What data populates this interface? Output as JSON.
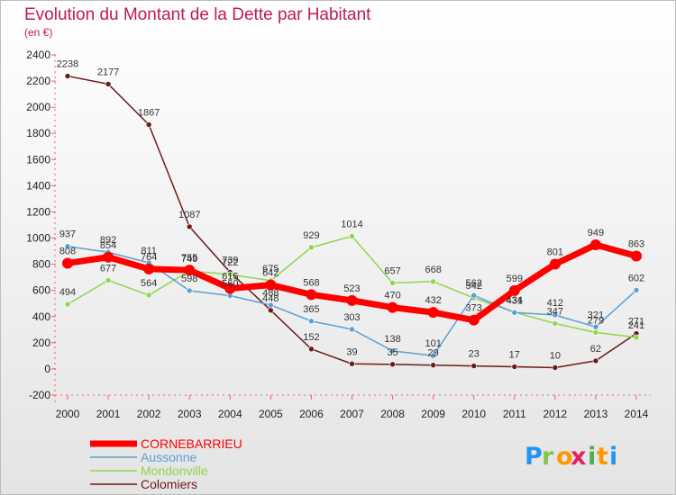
{
  "logo": [
    "P",
    "r",
    "o",
    "x",
    "i",
    "t",
    "i"
  ],
  "chart_data": {
    "type": "line",
    "title": "Evolution du Montant de la Dette par Habitant",
    "subtitle": "(en €)",
    "xlabel": "",
    "ylabel": "",
    "categories": [
      "2000",
      "2001",
      "2002",
      "2003",
      "2004",
      "2005",
      "2006",
      "2007",
      "2008",
      "2009",
      "2010",
      "2011",
      "2012",
      "2013",
      "2014"
    ],
    "ylim": [
      -200,
      2400
    ],
    "yticks": [
      -200,
      0,
      200,
      400,
      600,
      800,
      1000,
      1200,
      1400,
      1600,
      1800,
      2000,
      2200,
      2400
    ],
    "grid": false,
    "legend_position": "bottom-left",
    "series": [
      {
        "name": "Colomiers",
        "color": "#6b1a1a",
        "width": 1.5,
        "marker": 3,
        "values": [
          2238,
          2177,
          1867,
          1087,
          739,
          448,
          152,
          39,
          35,
          29,
          23,
          17,
          10,
          62,
          271
        ]
      },
      {
        "name": "Mondonville",
        "color": "#8fd64a",
        "width": 1.5,
        "marker": 3,
        "values": [
          494,
          677,
          564,
          749,
          722,
          675,
          929,
          1014,
          657,
          668,
          542,
          434,
          347,
          279,
          241
        ]
      },
      {
        "name": "Aussonne",
        "color": "#5a9fd4",
        "width": 1.5,
        "marker": 3,
        "values": [
          937,
          892,
          811,
          598,
          560,
          488,
          365,
          303,
          138,
          101,
          562,
          431,
          412,
          321,
          602
        ]
      },
      {
        "name": "CORNEBARRIEU",
        "color": "#ff0000",
        "width": 7,
        "marker": 6,
        "values": [
          808,
          854,
          764,
          755,
          615,
          642,
          568,
          523,
          470,
          432,
          373,
          599,
          801,
          949,
          863
        ]
      }
    ],
    "legend_order": [
      "CORNEBARRIEU",
      "Aussonne",
      "Mondonville",
      "Colomiers"
    ]
  }
}
